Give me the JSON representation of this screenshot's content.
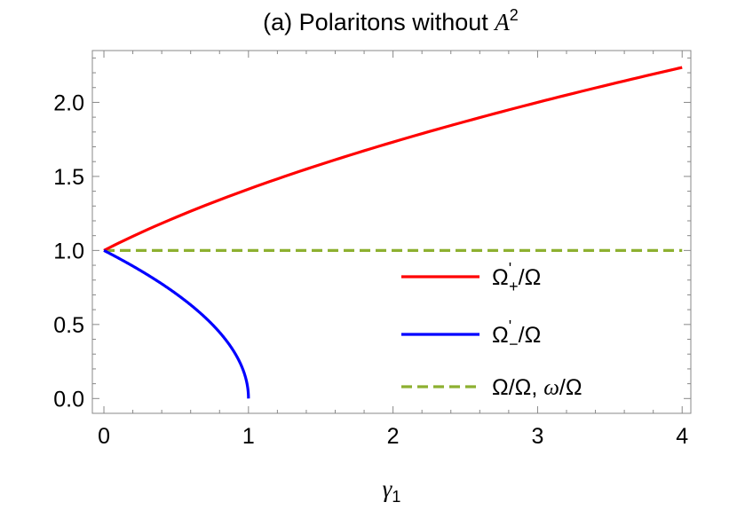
{
  "chart_data": {
    "type": "line",
    "title": "(a) Polaritons without A2",
    "title_parts": {
      "prefix": "(a) Polaritons without ",
      "var": "A",
      "sup": "2"
    },
    "xlabel": {
      "var": "γ",
      "sub": "1"
    },
    "ylabel": "",
    "xlim": [
      -0.08,
      4.06
    ],
    "ylim": [
      -0.1,
      2.35
    ],
    "x_ticks": [
      0,
      1,
      2,
      3,
      4
    ],
    "x_tick_labels": [
      "0",
      "1",
      "2",
      "3",
      "4"
    ],
    "y_ticks": [
      0.0,
      0.5,
      1.0,
      1.5,
      2.0
    ],
    "y_tick_labels": [
      "0.0",
      "0.5",
      "1.0",
      "1.5",
      "2.0"
    ],
    "grid": false,
    "legend_position": "lower-right",
    "series": [
      {
        "name": "Ω'₊/Ω",
        "legend": {
          "base": "Ω",
          "sup": "'",
          "sub": "+",
          "tail": "/Ω"
        },
        "color": "#ff0000",
        "style": "solid",
        "x": [
          0,
          0.25,
          0.5,
          0.75,
          1.0,
          1.5,
          2.0,
          2.5,
          3.0,
          3.5,
          4.0
        ],
        "y": [
          1.0,
          1.118,
          1.225,
          1.323,
          1.414,
          1.581,
          1.732,
          1.871,
          2.0,
          2.121,
          2.236
        ]
      },
      {
        "name": "Ω'₋/Ω",
        "legend": {
          "base": "Ω",
          "sup": "'",
          "sub": "−",
          "tail": "/Ω"
        },
        "color": "#0000ff",
        "style": "solid",
        "x": [
          0,
          0.1,
          0.2,
          0.3,
          0.4,
          0.5,
          0.6,
          0.7,
          0.8,
          0.9,
          0.95,
          0.99,
          1.0
        ],
        "y": [
          1.0,
          0.949,
          0.894,
          0.837,
          0.775,
          0.707,
          0.632,
          0.548,
          0.447,
          0.316,
          0.224,
          0.1,
          0.0
        ]
      },
      {
        "name": "Ω/Ω, ω/Ω",
        "legend": {
          "text": "Ω/Ω, ",
          "var": "ω",
          "tail": "/Ω"
        },
        "color": "#8db030",
        "style": "dashed",
        "x": [
          0,
          4
        ],
        "y": [
          1.0,
          1.0
        ]
      }
    ]
  }
}
